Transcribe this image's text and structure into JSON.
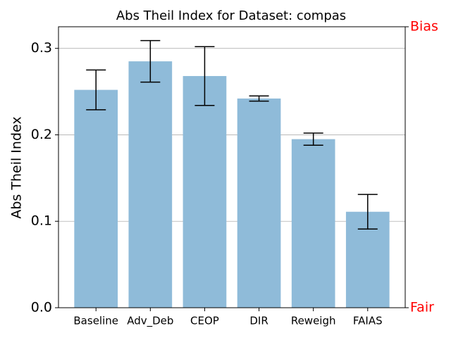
{
  "chart_data": {
    "type": "bar",
    "title": "Abs Theil Index for Dataset: compas",
    "y_label": "Abs Theil Index",
    "categories": [
      "Baseline",
      "Adv_Deb",
      "CEOP",
      "DIR",
      "Reweigh",
      "FAIAS"
    ],
    "values": [
      0.252,
      0.285,
      0.268,
      0.242,
      0.195,
      0.111
    ],
    "errors": [
      0.023,
      0.024,
      0.034,
      0.003,
      0.007,
      0.02
    ],
    "color": "#8fbbd9",
    "error_color": "#000000",
    "ylim": [
      0,
      0.325
    ],
    "yticks": [
      {
        "value": 0,
        "label": "0.0"
      },
      0.1,
      0.2,
      0.3
    ],
    "grid": true,
    "y2lim": [
      0,
      1
    ],
    "y2ticks": [
      {
        "value": 0,
        "label": "Fair"
      },
      {
        "value": 1,
        "label": "Bias"
      }
    ],
    "y2_color": "#ff0000"
  }
}
